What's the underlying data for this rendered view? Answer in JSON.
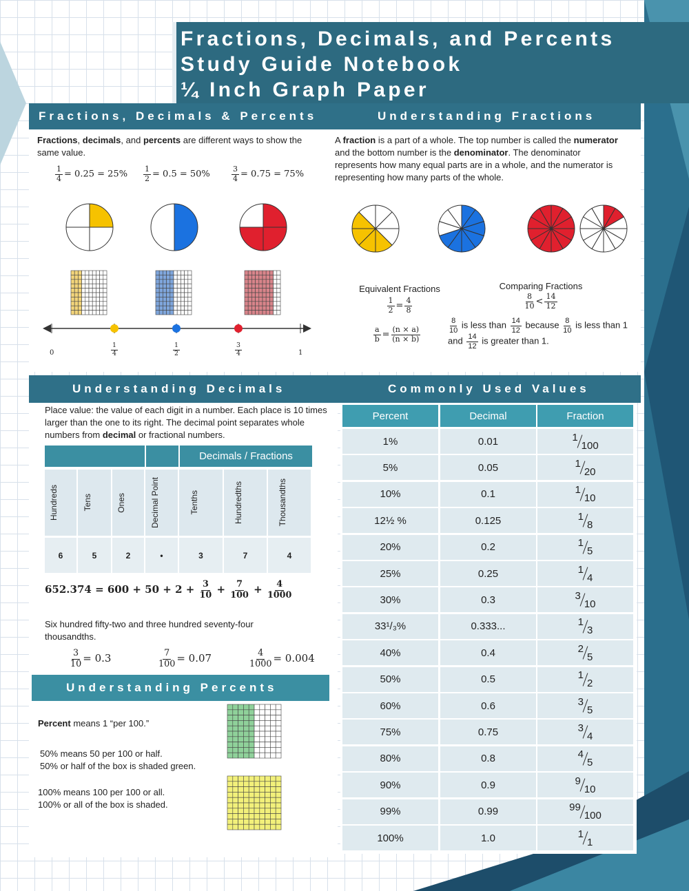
{
  "title": [
    "Fractions, Decimals, and Percents",
    "Study Guide Notebook",
    "¼ Inch Graph Paper"
  ],
  "fdp": {
    "heading": "Fractions, Decimals & Percents",
    "intro": [
      {
        "t": "Fractions",
        "b": true
      },
      {
        "t": ", "
      },
      {
        "t": "decimals",
        "b": true
      },
      {
        "t": ", and "
      },
      {
        "t": "percents",
        "b": true
      },
      {
        "t": " are different ways to show the same value."
      }
    ],
    "examples": [
      [
        {
          "num": "1",
          "den": "4"
        },
        "= 0.25 = 25%"
      ],
      [
        {
          "num": "1",
          "den": "2"
        },
        "= 0.5 = 50%"
      ],
      [
        {
          "num": "3",
          "den": "4"
        },
        "= 0.75 = 75%"
      ]
    ],
    "number_line": {
      "start": "0",
      "end": "1",
      "marks": [
        {
          "num": "1",
          "den": "4"
        },
        {
          "num": "1",
          "den": "2"
        },
        {
          "num": "3",
          "den": "4"
        }
      ]
    }
  },
  "fractions": {
    "heading": "Understanding Fractions",
    "intro": [
      {
        "t": "A "
      },
      {
        "t": "fraction",
        "b": true
      },
      {
        "t": " is a part of a whole. The top number is called the "
      },
      {
        "t": "numerator",
        "b": true
      },
      {
        "t": " and the bottom number is the "
      },
      {
        "t": "denominator",
        "b": true
      },
      {
        "t": ". The denominator represents how many equal parts are in a whole, and the numerator is representing how many parts of the whole."
      }
    ],
    "equivalent": {
      "title": "Equivalent Fractions",
      "example": [
        {
          "num": "1",
          "den": "2"
        },
        "=",
        {
          "num": "4",
          "den": "8"
        }
      ],
      "rule": [
        {
          "num": "a",
          "den": "b"
        },
        "=",
        {
          "num": "(n × a)",
          "den": "(n × b)"
        }
      ]
    },
    "comparing": {
      "title": "Comparing Fractions",
      "example": [
        {
          "num": "8",
          "den": "10"
        },
        "<",
        {
          "num": "14",
          "den": "12"
        }
      ],
      "line1": [
        {
          "num": "8",
          "den": "10"
        },
        " is less than ",
        {
          "num": "14",
          "den": "12"
        },
        " because ",
        {
          "num": "8",
          "den": "10"
        },
        " is less than 1"
      ],
      "line2": [
        "and ",
        {
          "num": "14",
          "den": "12"
        },
        " is greater than 1."
      ]
    }
  },
  "decimals": {
    "heading": "Understanding Decimals",
    "intro": [
      {
        "t": "Place value:  the value of each digit in a number. Each place is 10 times larger than the one to its right. The decimal point separates whole numbers from "
      },
      {
        "t": "decimal",
        "b": true
      },
      {
        "t": " or fractional numbers."
      }
    ],
    "table": {
      "group": "Decimals / Fractions",
      "columns": [
        "Hundreds",
        "Tens",
        "Ones",
        "Decimal Point",
        "Tenths",
        "Hundredths",
        "Thousandths"
      ],
      "digits": [
        "6",
        "5",
        "2",
        "•",
        "3",
        "7",
        "4"
      ]
    },
    "expansion": [
      "652.374 = 600 + 50 + 2 + ",
      {
        "num": "3",
        "den": "10"
      },
      " + ",
      {
        "num": "7",
        "den": "100"
      },
      " + ",
      {
        "num": "4",
        "den": "1000"
      }
    ],
    "words": "Six hundred fifty-two and three hundred seventy-four thousandths.",
    "examples": [
      [
        {
          "num": "3",
          "den": "10"
        },
        "= 0.3"
      ],
      [
        {
          "num": "7",
          "den": "100"
        },
        "= 0.07"
      ],
      [
        {
          "num": "4",
          "den": "1000"
        },
        "= 0.004"
      ]
    ]
  },
  "percents": {
    "heading": "Understanding Percents",
    "definition": [
      {
        "t": "Percent",
        "b": true
      },
      {
        "t": " means 1 “per 100.”"
      }
    ],
    "half": [
      "50% means 50 per 100 or half.",
      "50% or half of the box is shaded green."
    ],
    "whole": [
      "100% means 100 per 100 or all.",
      "100% or all of the box is shaded."
    ]
  },
  "values": {
    "heading": "Commonly Used Values",
    "columns": [
      "Percent",
      "Decimal",
      "Fraction"
    ],
    "rows": [
      [
        "1%",
        "0.01",
        {
          "num": "1",
          "den": "100"
        }
      ],
      [
        "5%",
        "0.05",
        {
          "num": "1",
          "den": "20"
        }
      ],
      [
        "10%",
        "0.1",
        {
          "num": "1",
          "den": "10"
        }
      ],
      [
        "12½ %",
        "0.125",
        {
          "num": "1",
          "den": "8"
        }
      ],
      [
        "20%",
        "0.2",
        {
          "num": "1",
          "den": "5"
        }
      ],
      [
        "25%",
        "0.25",
        {
          "num": "1",
          "den": "4"
        }
      ],
      [
        "30%",
        "0.3",
        {
          "num": "3",
          "den": "10"
        }
      ],
      [
        "33¹/₃%",
        "0.333...",
        {
          "num": "1",
          "den": "3"
        }
      ],
      [
        "40%",
        "0.4",
        {
          "num": "2",
          "den": "5"
        }
      ],
      [
        "50%",
        "0.5",
        {
          "num": "1",
          "den": "2"
        }
      ],
      [
        "60%",
        "0.6",
        {
          "num": "3",
          "den": "5"
        }
      ],
      [
        "75%",
        "0.75",
        {
          "num": "3",
          "den": "4"
        }
      ],
      [
        "80%",
        "0.8",
        {
          "num": "4",
          "den": "5"
        }
      ],
      [
        "90%",
        "0.9",
        {
          "num": "9",
          "den": "10"
        }
      ],
      [
        "99%",
        "0.99",
        {
          "num": "99",
          "den": "100"
        }
      ],
      [
        "100%",
        "1.0",
        {
          "num": "1",
          "den": "1"
        }
      ]
    ]
  }
}
